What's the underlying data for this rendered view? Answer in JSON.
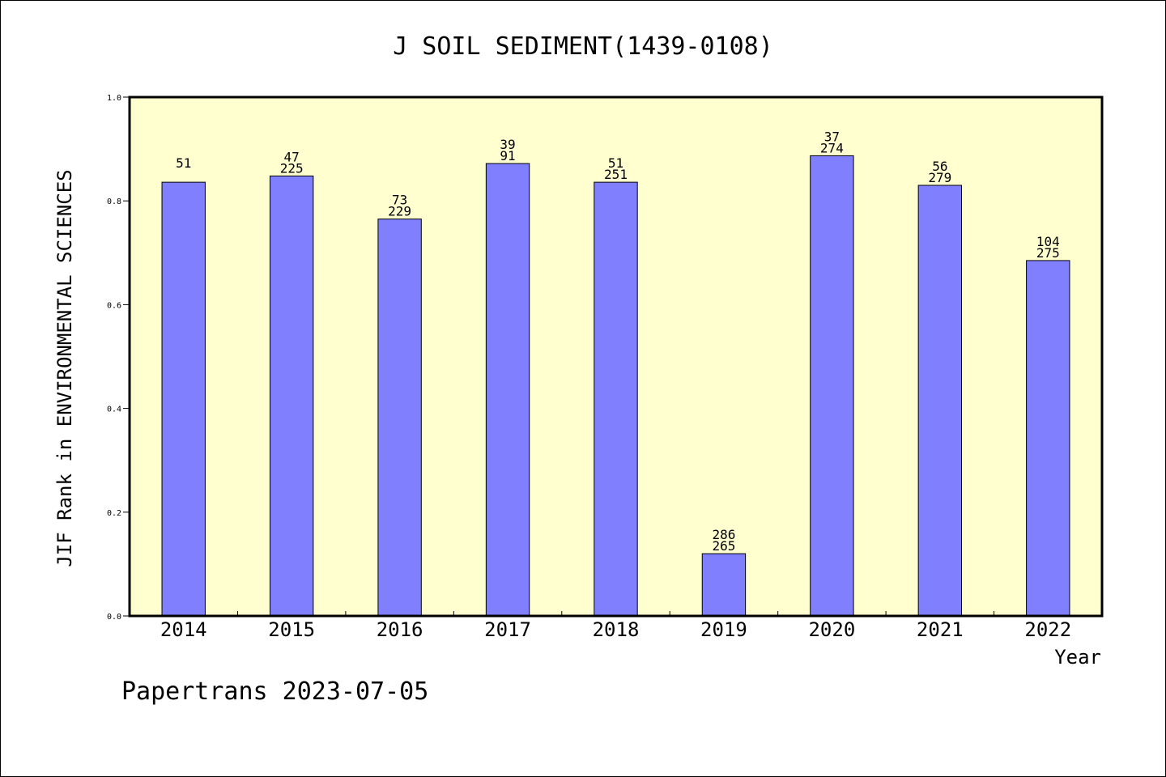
{
  "chart_data": {
    "type": "bar",
    "title": "J SOIL SEDIMENT(1439-0108)",
    "xlabel": "Year",
    "ylabel": "JIF Rank in ENVIRONMENTAL SCIENCES",
    "ylim": [
      0,
      1.0
    ],
    "yticks": [
      "0.0",
      "0.2",
      "0.4",
      "0.6",
      "0.8",
      "1.0"
    ],
    "categories": [
      "2014",
      "2015",
      "2016",
      "2017",
      "2018",
      "2019",
      "2020",
      "2021",
      "2022"
    ],
    "values": [
      0.836,
      0.848,
      0.765,
      0.872,
      0.836,
      0.12,
      0.887,
      0.83,
      0.685
    ],
    "bar_labels": [
      [
        "51"
      ],
      [
        "47",
        "225"
      ],
      [
        "73",
        "229"
      ],
      [
        "39",
        "91"
      ],
      [
        "51",
        "251"
      ],
      [
        "286",
        "265"
      ],
      [
        "37",
        "274"
      ],
      [
        "56",
        "279"
      ],
      [
        "104",
        "275"
      ]
    ],
    "grid": false,
    "colors": {
      "bar": "#8080ff",
      "plot_bg": "#ffffd0"
    }
  },
  "footer": "Papertrans 2023-07-05"
}
